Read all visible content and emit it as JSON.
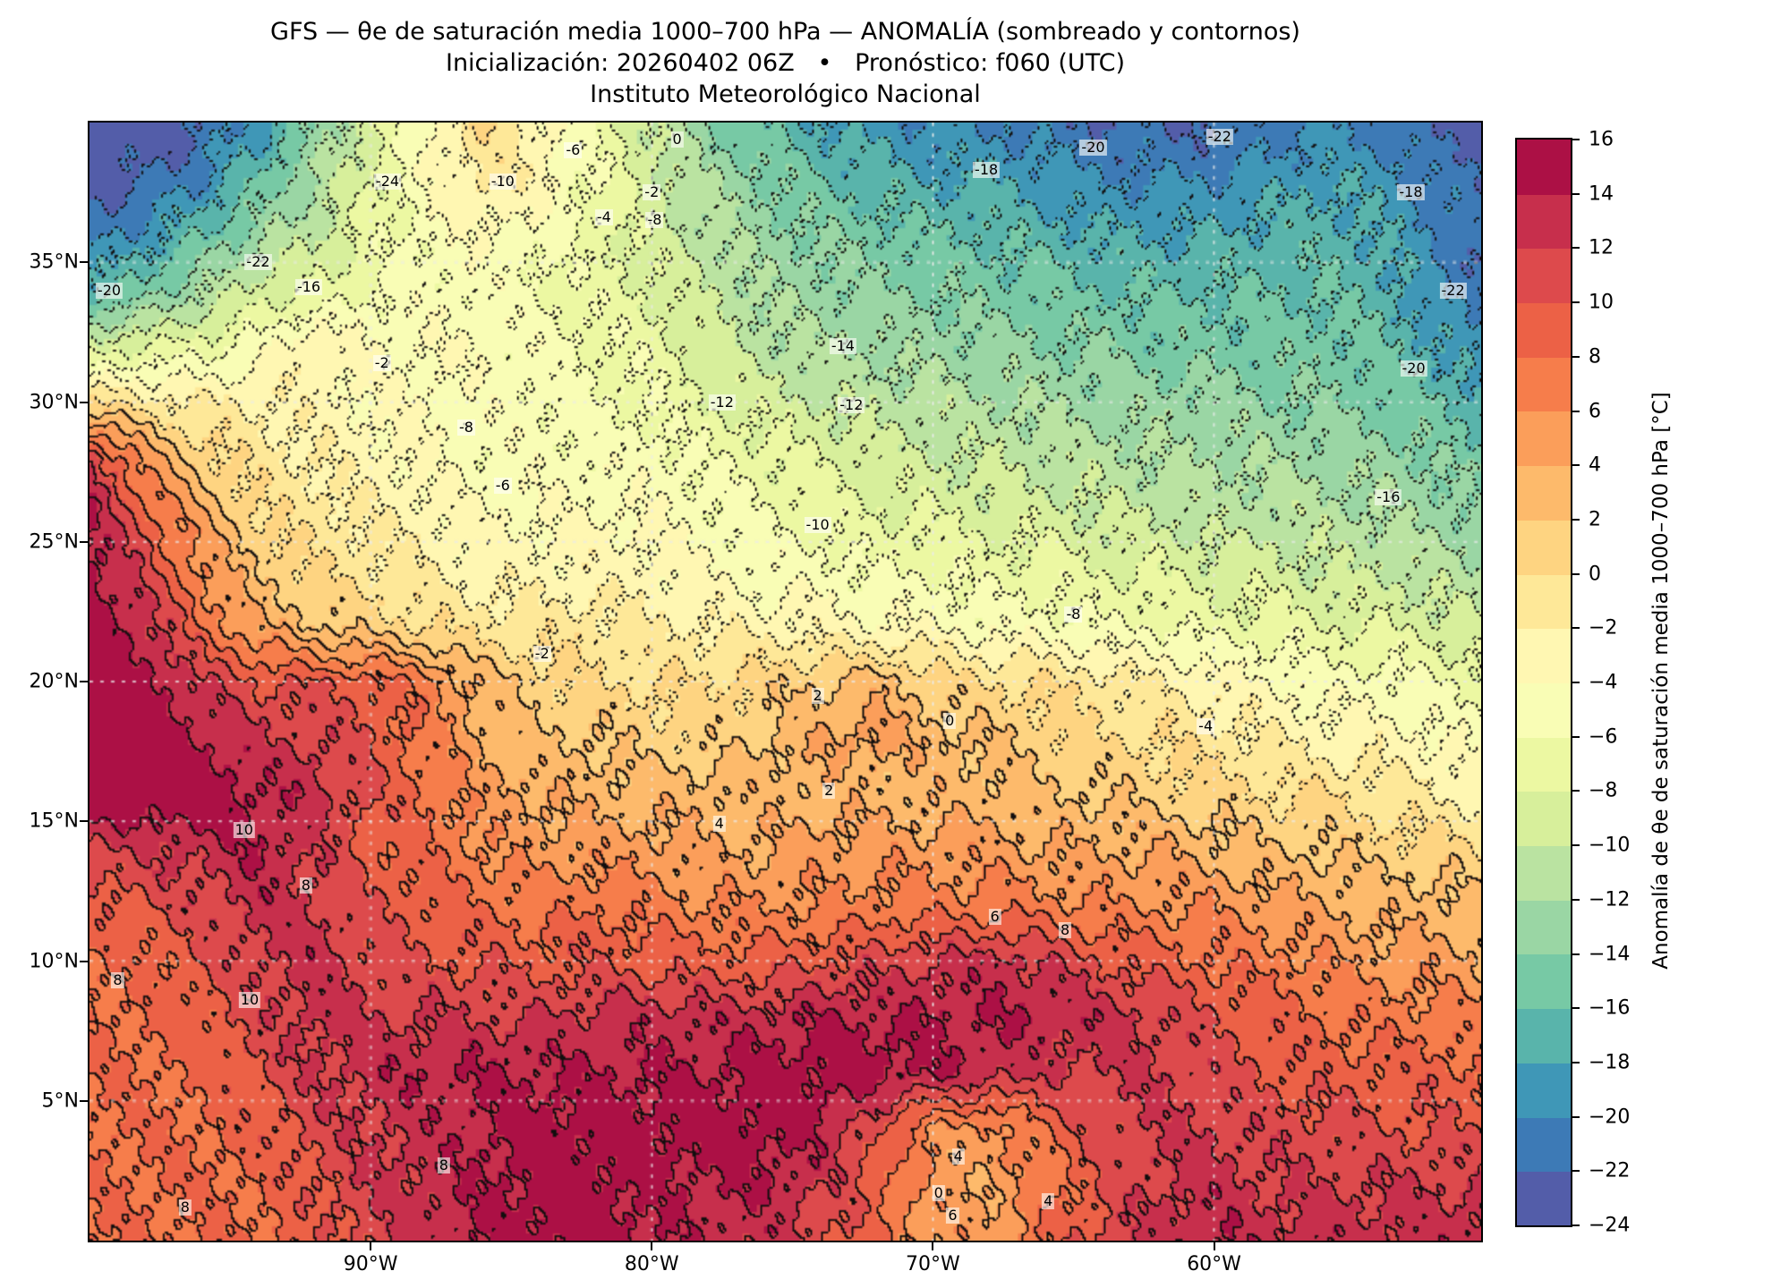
{
  "titles": {
    "line1": "GFS — θe de saturación media 1000–700 hPa — ANOMALÍA (sombreado y contornos)",
    "line2": "Inicialización: 20260402 06Z   •   Pronóstico: f060 (UTC)",
    "line3": "Instituto Meteorológico Nacional"
  },
  "axes": {
    "x_ticks": [
      "90°W",
      "80°W",
      "70°W",
      "60°W"
    ],
    "x_tick_lons": [
      -90,
      -80,
      -70,
      -60
    ],
    "y_ticks": [
      "5°N",
      "10°N",
      "15°N",
      "20°N",
      "25°N",
      "30°N",
      "35°N"
    ],
    "y_tick_lats": [
      5,
      10,
      15,
      20,
      25,
      30,
      35
    ]
  },
  "colorbar": {
    "label": "Anomalía de θe de saturación media 1000–700 hPa [°C]",
    "min": -24,
    "max": 16,
    "step": 2,
    "tick_values": [
      16,
      14,
      12,
      10,
      8,
      6,
      4,
      2,
      0,
      -2,
      -4,
      -6,
      -8,
      -10,
      -12,
      -14,
      -16,
      -18,
      -20,
      -22,
      -24
    ],
    "tick_labels": [
      "16",
      "14",
      "12",
      "10",
      "8",
      "6",
      "4",
      "2",
      "0",
      "−2",
      "−4",
      "−6",
      "−8",
      "−10",
      "−12",
      "−14",
      "−16",
      "−18",
      "−20",
      "−22",
      "−24"
    ],
    "spectral_anchors": [
      "#9e0142",
      "#d53e4f",
      "#f46d43",
      "#fdae61",
      "#fee08b",
      "#ffffbf",
      "#e6f598",
      "#abdda4",
      "#66c2a5",
      "#3288bd",
      "#5e4fa2"
    ]
  },
  "chart_data": {
    "type": "heatmap",
    "title": "GFS — θe de saturación media 1000–700 hPa — ANOMALÍA (sombreado y contornos)",
    "units": "°C",
    "levels": {
      "min": -24,
      "max": 16,
      "step": 2
    },
    "lon_range": [
      -100,
      -50.5
    ],
    "lat_range": [
      0,
      40
    ],
    "grid_lons": [
      -100,
      -98,
      -96,
      -94,
      -92,
      -90,
      -88,
      -86,
      -84,
      -82,
      -80,
      -78,
      -76,
      -74,
      -72,
      -70,
      -68,
      -66,
      -64,
      -62,
      -60,
      -58,
      -56,
      -54,
      -52,
      -50
    ],
    "grid_lats": [
      40,
      38,
      36,
      34,
      32,
      30,
      28,
      26,
      24,
      22,
      20,
      18,
      16,
      14,
      12,
      10,
      8,
      6,
      4,
      2,
      0
    ],
    "values": [
      [
        -24,
        -24,
        -22,
        -19,
        -14,
        -9,
        -4,
        0,
        -3,
        -6,
        -10,
        -14,
        -16,
        -18,
        -19,
        -20,
        -20,
        -21,
        -22,
        -22,
        -22,
        -21,
        -20,
        -21,
        -22,
        -23
      ],
      [
        -23,
        -22,
        -20,
        -16,
        -12,
        -8,
        -4,
        -1,
        -3,
        -6,
        -9,
        -12,
        -14,
        -16,
        -17,
        -18,
        -18,
        -19,
        -20,
        -20,
        -20,
        -19,
        -18,
        -19,
        -21,
        -22
      ],
      [
        -21,
        -19,
        -16,
        -13,
        -10,
        -7,
        -5,
        -4,
        -5,
        -7,
        -9,
        -11,
        -13,
        -14,
        -15,
        -16,
        -16,
        -17,
        -18,
        -18,
        -18,
        -17,
        -17,
        -18,
        -20,
        -22
      ],
      [
        -17,
        -15,
        -12,
        -9,
        -8,
        -6,
        -5,
        -5,
        -6,
        -7,
        -8,
        -10,
        -12,
        -13,
        -14,
        -14,
        -15,
        -15,
        -16,
        -16,
        -16,
        -16,
        -16,
        -17,
        -20,
        -22
      ],
      [
        -9,
        -8,
        -7,
        -5,
        -2,
        -4,
        -4,
        -4,
        -5,
        -6,
        -7,
        -9,
        -11,
        -12,
        -12,
        -13,
        -13,
        -14,
        -14,
        -15,
        -15,
        -15,
        -15,
        -16,
        -18,
        -20
      ],
      [
        0,
        -1,
        -2,
        -2,
        -3,
        -4,
        -4,
        -5,
        -5,
        -6,
        -6,
        -8,
        -9,
        -10,
        -11,
        -11,
        -12,
        -12,
        -13,
        -13,
        -13,
        -14,
        -14,
        -15,
        -16,
        -18
      ],
      [
        12,
        5,
        1,
        -1,
        -2,
        -3,
        -4,
        -5,
        -5,
        -5,
        -5,
        -6,
        -7,
        -8,
        -9,
        -10,
        -10,
        -11,
        -11,
        -12,
        -12,
        -12,
        -13,
        -13,
        -14,
        -16
      ],
      [
        14,
        9,
        4,
        0,
        -1,
        -2,
        -3,
        -4,
        -4,
        -4,
        -4,
        -5,
        -6,
        -7,
        -8,
        -8,
        -9,
        -9,
        -10,
        -10,
        -11,
        -11,
        -11,
        -12,
        -13,
        -14
      ],
      [
        15,
        11,
        6,
        2,
        0,
        -1,
        -2,
        -3,
        -3,
        -3,
        -3,
        -4,
        -5,
        -5,
        -6,
        -6,
        -7,
        -7,
        -8,
        -8,
        -9,
        -9,
        -10,
        -10,
        -11,
        -12
      ],
      [
        16,
        13,
        8,
        4,
        2,
        1,
        0,
        -1,
        -1,
        -1,
        -2,
        -2,
        -3,
        -3,
        -4,
        -4,
        -5,
        -5,
        -6,
        -6,
        -7,
        -7,
        -8,
        -8,
        -9,
        -10
      ],
      [
        16,
        15,
        12,
        10,
        10,
        9,
        7,
        3,
        1,
        0,
        0,
        0,
        1,
        2,
        3,
        1,
        0,
        0,
        -1,
        -2,
        -3,
        -4,
        -5,
        -5,
        -6,
        -7
      ],
      [
        16,
        16,
        14,
        12,
        12,
        10,
        7,
        4,
        2,
        2,
        1,
        1,
        2,
        4,
        5,
        3,
        2,
        1,
        0,
        0,
        -1,
        -2,
        -3,
        -3,
        -4,
        -5
      ],
      [
        16,
        16,
        16,
        14,
        13,
        10,
        8,
        5,
        4,
        3,
        3,
        3,
        3,
        3,
        3,
        3,
        3,
        2,
        2,
        1,
        1,
        0,
        0,
        -1,
        -2,
        -3
      ],
      [
        12,
        12,
        13,
        14,
        12,
        9,
        8,
        6,
        5,
        5,
        5,
        4,
        4,
        5,
        5,
        5,
        5,
        4,
        4,
        4,
        3,
        2,
        2,
        1,
        1,
        0
      ],
      [
        9,
        10,
        11,
        13,
        12,
        10,
        9,
        8,
        7,
        8,
        7,
        6,
        6,
        6,
        7,
        7,
        7,
        7,
        6,
        6,
        6,
        5,
        4,
        3,
        3,
        2
      ],
      [
        8,
        8,
        10,
        12,
        13,
        11,
        10,
        10,
        9,
        10,
        9,
        9,
        9,
        10,
        11,
        12,
        13,
        12,
        10,
        9,
        8,
        7,
        6,
        5,
        5,
        4
      ],
      [
        8,
        8,
        9,
        11,
        13,
        12,
        12,
        12,
        12,
        13,
        13,
        13,
        13,
        14,
        14,
        14,
        14,
        14,
        13,
        12,
        10,
        9,
        8,
        7,
        7,
        6
      ],
      [
        8,
        8,
        8,
        10,
        12,
        13,
        14,
        14,
        14,
        14,
        14,
        14,
        15,
        15,
        15,
        14,
        13,
        12,
        12,
        12,
        11,
        10,
        9,
        9,
        9,
        8
      ],
      [
        8,
        8,
        8,
        9,
        11,
        12,
        13,
        14,
        15,
        15,
        15,
        15,
        15,
        14,
        10,
        6,
        5,
        8,
        11,
        12,
        12,
        11,
        11,
        10,
        10,
        10
      ],
      [
        8,
        8,
        8,
        8,
        10,
        12,
        13,
        14,
        15,
        15,
        14,
        14,
        14,
        12,
        9,
        5,
        4,
        7,
        10,
        12,
        13,
        12,
        12,
        12,
        12,
        12
      ],
      [
        8,
        8,
        8,
        8,
        9,
        11,
        13,
        14,
        15,
        15,
        14,
        13,
        13,
        11,
        8,
        5,
        5,
        8,
        11,
        13,
        14,
        13,
        13,
        13,
        13,
        14
      ]
    ],
    "contour_labels": [
      {
        "text": "-24",
        "lon": -89.4,
        "lat": 37.9
      },
      {
        "text": "-10",
        "lon": -85.3,
        "lat": 37.9
      },
      {
        "text": "-6",
        "lon": -82.8,
        "lat": 39.0
      },
      {
        "text": "0",
        "lon": -79.1,
        "lat": 39.4
      },
      {
        "text": "-2",
        "lon": -80.0,
        "lat": 37.5
      },
      {
        "text": "-4",
        "lon": -81.7,
        "lat": 36.6
      },
      {
        "text": "-8",
        "lon": -79.9,
        "lat": 36.5
      },
      {
        "text": "-20",
        "lon": -64.3,
        "lat": 39.1
      },
      {
        "text": "-18",
        "lon": -68.1,
        "lat": 38.3
      },
      {
        "text": "-22",
        "lon": -59.8,
        "lat": 39.5
      },
      {
        "text": "-18",
        "lon": -53.0,
        "lat": 37.5
      },
      {
        "text": "-22",
        "lon": -51.5,
        "lat": 34.0
      },
      {
        "text": "-22",
        "lon": -94.0,
        "lat": 35.0
      },
      {
        "text": "-20",
        "lon": -99.3,
        "lat": 34.0
      },
      {
        "text": "-16",
        "lon": -92.2,
        "lat": 34.1
      },
      {
        "text": "-14",
        "lon": -73.2,
        "lat": 32.0
      },
      {
        "text": "-12",
        "lon": -77.5,
        "lat": 30.0
      },
      {
        "text": "-12",
        "lon": -72.9,
        "lat": 29.9
      },
      {
        "text": "-20",
        "lon": -52.9,
        "lat": 31.2
      },
      {
        "text": "-16",
        "lon": -53.8,
        "lat": 26.6
      },
      {
        "text": "-8",
        "lon": -86.6,
        "lat": 29.1
      },
      {
        "text": "-6",
        "lon": -85.3,
        "lat": 27.0
      },
      {
        "text": "-2",
        "lon": -89.6,
        "lat": 31.4
      },
      {
        "text": "-10",
        "lon": -74.1,
        "lat": 25.6
      },
      {
        "text": "-8",
        "lon": -65.0,
        "lat": 22.4
      },
      {
        "text": "-4",
        "lon": -60.3,
        "lat": 18.4
      },
      {
        "text": "-2",
        "lon": -83.9,
        "lat": 21.0
      },
      {
        "text": "2",
        "lon": -74.1,
        "lat": 19.5
      },
      {
        "text": "0",
        "lon": -69.4,
        "lat": 18.6
      },
      {
        "text": "2",
        "lon": -73.7,
        "lat": 16.1
      },
      {
        "text": "4",
        "lon": -77.6,
        "lat": 14.9
      },
      {
        "text": "6",
        "lon": -67.8,
        "lat": 11.6
      },
      {
        "text": "8",
        "lon": -65.3,
        "lat": 11.1
      },
      {
        "text": "10",
        "lon": -94.5,
        "lat": 14.7
      },
      {
        "text": "8",
        "lon": -92.3,
        "lat": 12.7
      },
      {
        "text": "10",
        "lon": -94.3,
        "lat": 8.6
      },
      {
        "text": "8",
        "lon": -99.0,
        "lat": 9.3
      },
      {
        "text": "8",
        "lon": -87.4,
        "lat": 2.7
      },
      {
        "text": "4",
        "lon": -69.1,
        "lat": 3.0
      },
      {
        "text": "0",
        "lon": -69.8,
        "lat": 1.7
      },
      {
        "text": "4",
        "lon": -65.9,
        "lat": 1.4
      },
      {
        "text": "6",
        "lon": -69.3,
        "lat": 0.9
      },
      {
        "text": "8",
        "lon": -96.6,
        "lat": 1.2
      }
    ]
  }
}
